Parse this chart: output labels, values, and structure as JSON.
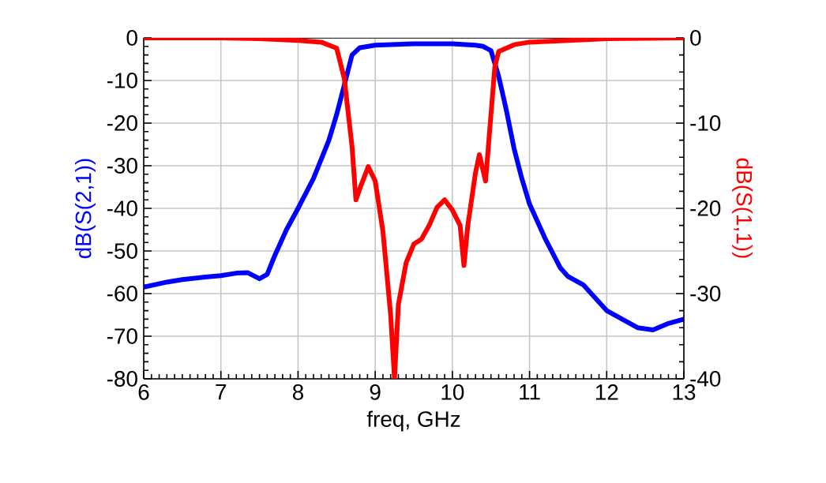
{
  "chart_data": {
    "type": "line",
    "xlabel": "freq, GHz",
    "ylabel": "dB(S(2,1))",
    "y2label": "dB(S(1,1))",
    "xlim": [
      6,
      13
    ],
    "xticks": [
      6,
      7,
      8,
      9,
      10,
      11,
      12,
      13
    ],
    "ylim": [
      -80,
      0
    ],
    "yticks": [
      -80,
      -70,
      -60,
      -50,
      -40,
      -30,
      -20,
      -10,
      0
    ],
    "y2lim": [
      -40,
      0
    ],
    "y2ticks": [
      -40,
      -30,
      -20,
      -10,
      0
    ],
    "grid": true,
    "series": [
      {
        "name": null,
        "color": "#0000ff",
        "axis": "y",
        "x": [
          6,
          6.3,
          6.5,
          6.8,
          7.0,
          7.2,
          7.35,
          7.5,
          7.6,
          7.7,
          7.85,
          8.0,
          8.2,
          8.4,
          8.5,
          8.6,
          8.7,
          8.8,
          9.0,
          9.5,
          10.0,
          10.3,
          10.4,
          10.5,
          10.6,
          10.7,
          10.8,
          10.9,
          11.0,
          11.2,
          11.4,
          11.5,
          11.7,
          11.9,
          12.0,
          12.2,
          12.4,
          12.6,
          12.8,
          13.0
        ],
        "values": [
          -58.5,
          -57.3,
          -56.7,
          -56.1,
          -55.8,
          -55.2,
          -55.1,
          -56.5,
          -55.5,
          -51,
          -45,
          -40,
          -33,
          -24,
          -18,
          -11,
          -4,
          -2.3,
          -1.7,
          -1.4,
          -1.4,
          -1.7,
          -2,
          -3,
          -9,
          -17,
          -26,
          -33,
          -39,
          -47,
          -54,
          -56,
          -58,
          -62,
          -64,
          -66,
          -68,
          -68.5,
          -67,
          -66
        ]
      },
      {
        "name": null,
        "color": "#ff0000",
        "axis": "y2",
        "x": [
          6,
          7,
          7.5,
          8,
          8.3,
          8.5,
          8.6,
          8.7,
          8.75,
          8.8,
          8.91,
          9.0,
          9.1,
          9.2,
          9.25,
          9.3,
          9.4,
          9.5,
          9.6,
          9.7,
          9.8,
          9.9,
          10.0,
          10.1,
          10.15,
          10.2,
          10.3,
          10.35,
          10.43,
          10.5,
          10.55,
          10.6,
          10.8,
          11,
          12,
          13
        ],
        "values": [
          0,
          0,
          -0.1,
          -0.3,
          -0.5,
          -1.2,
          -4.8,
          -12.8,
          -19,
          -17.7,
          -15.1,
          -16.8,
          -22.7,
          -32.5,
          -40,
          -31.3,
          -26.4,
          -24.2,
          -23.6,
          -22,
          -19.9,
          -19,
          -20.2,
          -22,
          -26.7,
          -22,
          -15.8,
          -13.7,
          -16.8,
          -9,
          -3.4,
          -1.6,
          -0.8,
          -0.5,
          -0.1,
          0
        ]
      }
    ]
  }
}
